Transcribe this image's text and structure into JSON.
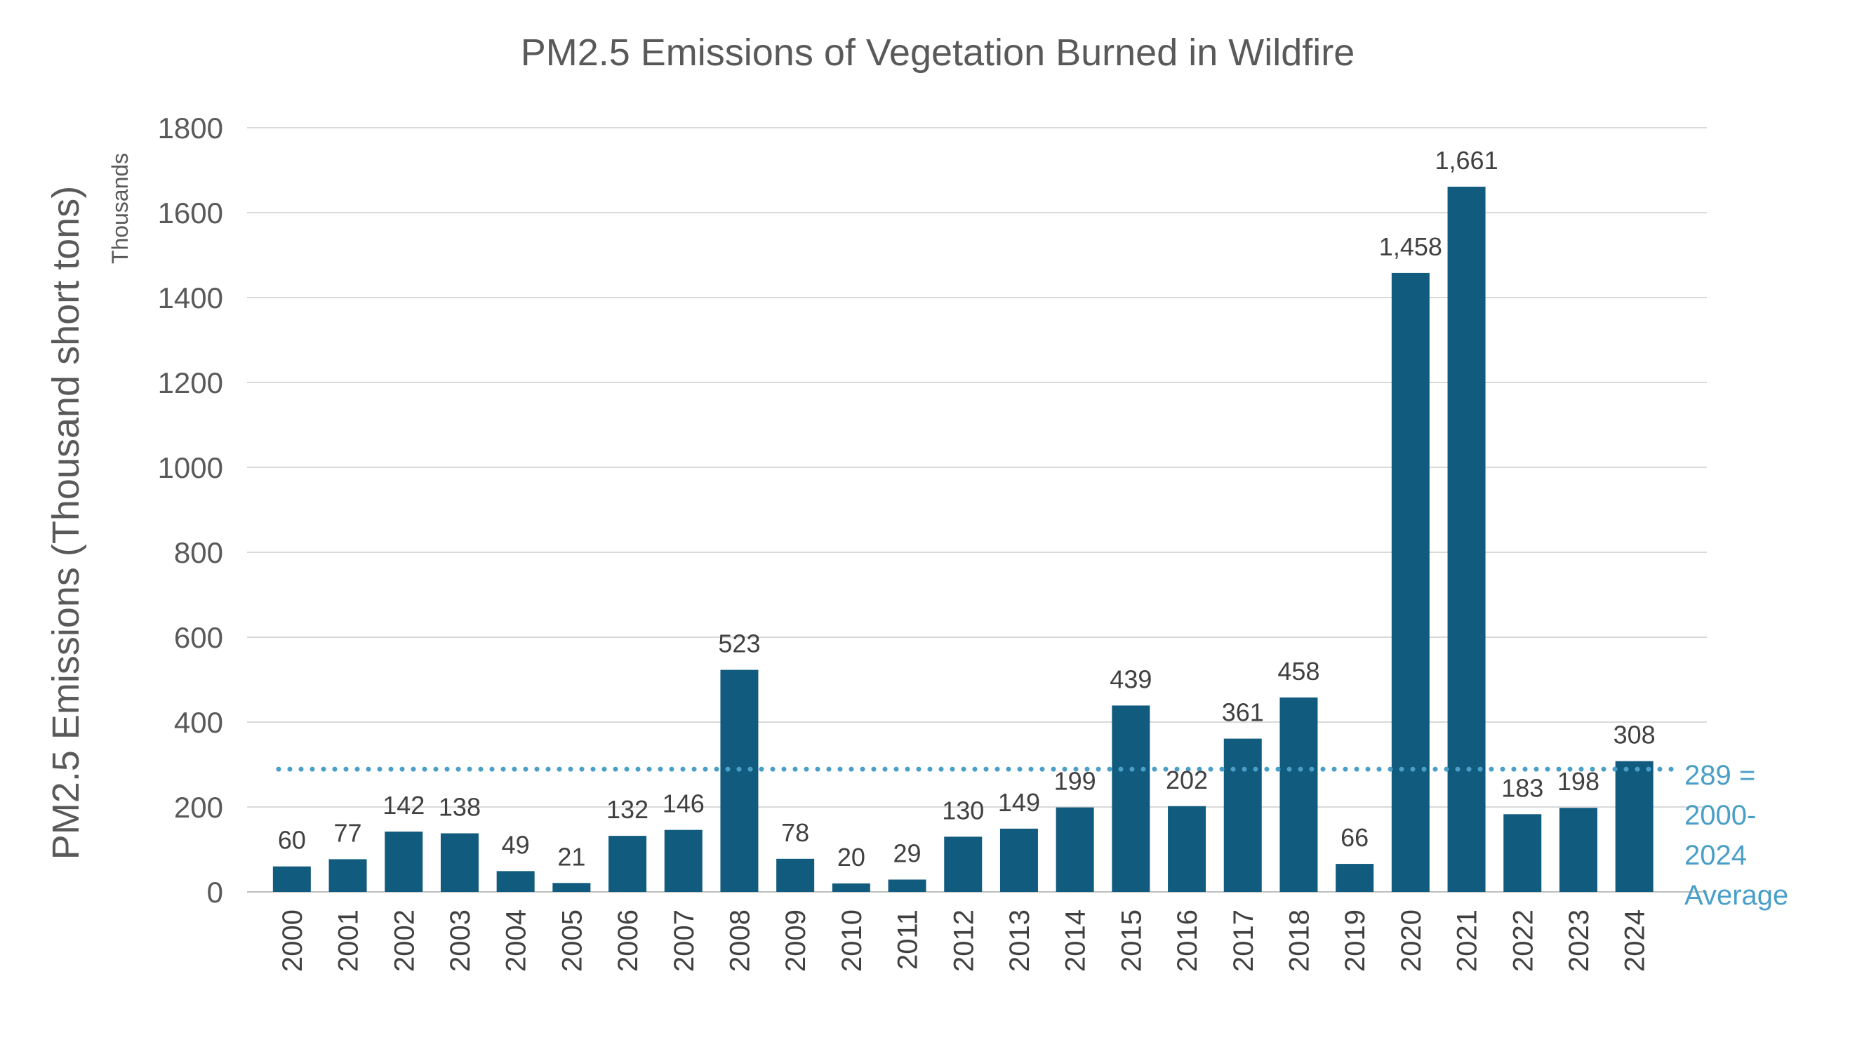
{
  "chart_data": {
    "type": "bar",
    "title": "PM2.5 Emissions of Vegetation Burned in Wildfire",
    "xlabel": "",
    "ylabel": "PM2.5 Emissions (Thousand short tons)",
    "y_unit_label": "Thousands",
    "categories": [
      "2000",
      "2001",
      "2002",
      "2003",
      "2004",
      "2005",
      "2006",
      "2007",
      "2008",
      "2009",
      "2010",
      "2011",
      "2012",
      "2013",
      "2014",
      "2015",
      "2016",
      "2017",
      "2018",
      "2019",
      "2020",
      "2021",
      "2022",
      "2023",
      "2024"
    ],
    "values": [
      60,
      77,
      142,
      138,
      49,
      21,
      132,
      146,
      523,
      78,
      20,
      29,
      130,
      149,
      199,
      439,
      202,
      361,
      458,
      66,
      1458,
      1661,
      183,
      198,
      308
    ],
    "data_labels": [
      "60",
      "77",
      "142",
      "138",
      "49",
      "21",
      "132",
      "146",
      "523",
      "78",
      "20",
      "29",
      "130",
      "149",
      "199",
      "439",
      "202",
      "361",
      "458",
      "66",
      "1,458",
      "1,661",
      "183",
      "198",
      "308"
    ],
    "ylim": [
      0,
      1800
    ],
    "yticks": [
      0,
      200,
      400,
      600,
      800,
      1000,
      1200,
      1400,
      1600,
      1800
    ],
    "grid": true,
    "legend": "none",
    "bar_color": "#115b7e",
    "reference_line": {
      "value": 289,
      "style": "dotted",
      "color": "#4a9fc8",
      "label_lines": [
        "289 =",
        "2000-",
        "2024",
        "Average"
      ]
    }
  }
}
